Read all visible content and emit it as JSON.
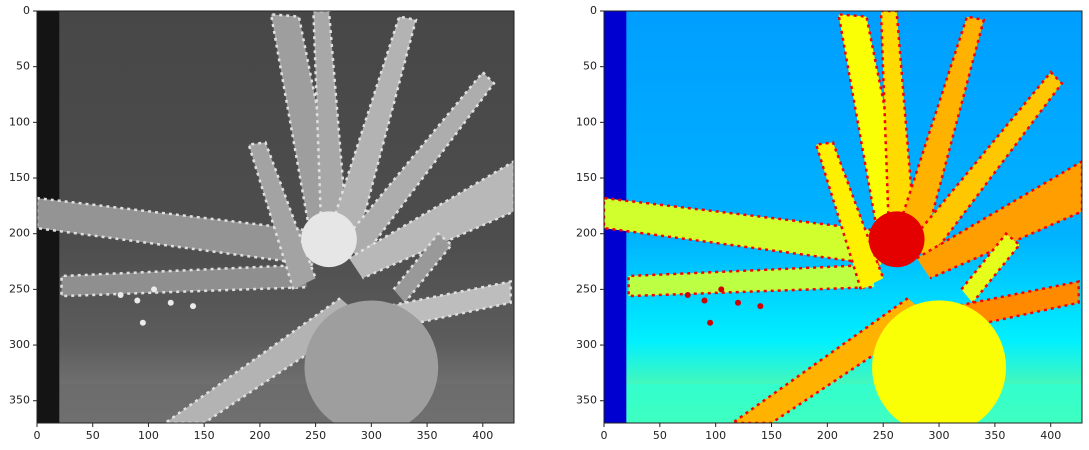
{
  "chart_data": [
    {
      "type": "image",
      "colormap": "gray",
      "xlim": [
        0,
        428
      ],
      "ylim": [
        370,
        0
      ],
      "xticks": [
        0,
        50,
        100,
        150,
        200,
        250,
        300,
        350,
        400
      ],
      "yticks": [
        0,
        50,
        100,
        150,
        200,
        250,
        300,
        350
      ]
    },
    {
      "type": "image",
      "colormap": "jet",
      "xlim": [
        0,
        428
      ],
      "ylim": [
        370,
        0
      ],
      "xticks": [
        0,
        50,
        100,
        150,
        200,
        250,
        300,
        350,
        400
      ],
      "yticks": [
        0,
        50,
        100,
        150,
        200,
        250,
        300,
        350
      ]
    }
  ]
}
